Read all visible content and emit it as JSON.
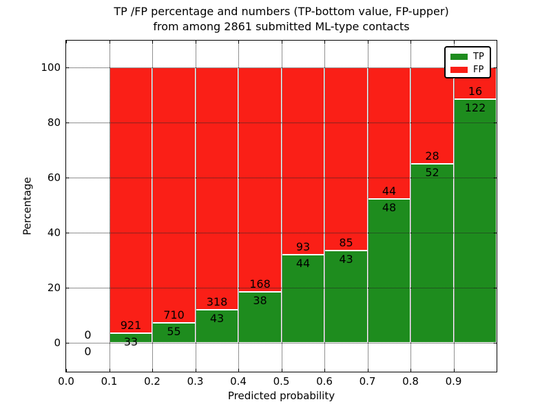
{
  "figure": {
    "title_line1": "TP /FP percentage and numbers (TP-bottom value, FP-upper)",
    "title_line2": "from among 2861 submitted ML-type contacts",
    "xlabel": "Predicted probability",
    "ylabel": "Percentage"
  },
  "legend": {
    "items": [
      {
        "label": "TP",
        "color": "#1e8c1e"
      },
      {
        "label": "FP",
        "color": "#fa1f17"
      }
    ]
  },
  "chart_data": {
    "type": "bar",
    "stacked": true,
    "normalized": "percent_of_bin_total",
    "title": "TP /FP percentage and numbers (TP-bottom value, FP-upper) from among 2861 submitted ML-type contacts",
    "xlabel": "Predicted probability",
    "ylabel": "Percentage",
    "xlim": [
      0.0,
      1.0
    ],
    "ylim": [
      -10.5,
      109.75
    ],
    "x_tick_labels": [
      "0.0",
      "0.1",
      "0.2",
      "0.3",
      "0.4",
      "0.5",
      "0.6",
      "0.7",
      "0.8",
      "0.9"
    ],
    "y_tick_values": [
      0,
      20,
      40,
      60,
      80,
      100
    ],
    "grid": true,
    "legend_position": "upper right",
    "bin_width": 0.1,
    "total_contacts": 2861,
    "bins": [
      {
        "x_start": 0.0,
        "tp": 0,
        "fp": 0
      },
      {
        "x_start": 0.1,
        "tp": 33,
        "fp": 921
      },
      {
        "x_start": 0.2,
        "tp": 55,
        "fp": 710
      },
      {
        "x_start": 0.3,
        "tp": 43,
        "fp": 318
      },
      {
        "x_start": 0.4,
        "tp": 38,
        "fp": 168
      },
      {
        "x_start": 0.5,
        "tp": 44,
        "fp": 93
      },
      {
        "x_start": 0.6,
        "tp": 43,
        "fp": 85
      },
      {
        "x_start": 0.7,
        "tp": 48,
        "fp": 44
      },
      {
        "x_start": 0.8,
        "tp": 52,
        "fp": 28
      },
      {
        "x_start": 0.9,
        "tp": 122,
        "fp": 16
      }
    ],
    "series": [
      {
        "name": "TP",
        "color": "#1e8c1e",
        "counts": [
          0,
          33,
          55,
          43,
          38,
          44,
          43,
          48,
          52,
          122
        ]
      },
      {
        "name": "FP",
        "color": "#fa1f17",
        "counts": [
          0,
          921,
          710,
          318,
          168,
          93,
          85,
          44,
          28,
          16
        ]
      }
    ]
  }
}
